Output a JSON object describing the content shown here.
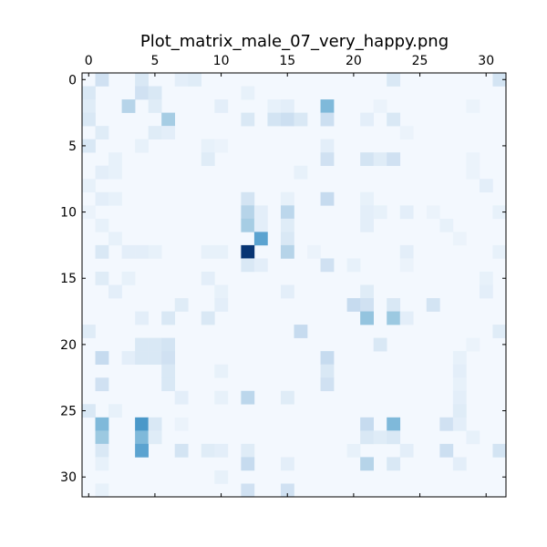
{
  "chart_data": {
    "type": "heatmap",
    "title": "Plot_matrix_male_07_very_happy.png",
    "rows": 32,
    "cols": 32,
    "x_ticks": [
      0,
      5,
      10,
      15,
      20,
      25,
      30
    ],
    "y_ticks": [
      0,
      5,
      10,
      15,
      20,
      25,
      30
    ],
    "x_axis_position": "top",
    "colormap": "Blues",
    "value_range": [
      0,
      1
    ],
    "color_scale": [
      "#f7fbff",
      "#deebf7",
      "#c6dbef",
      "#9ecae1",
      "#6baed6",
      "#4292c6",
      "#2171b5",
      "#08519c",
      "#08306b"
    ],
    "background_value": 0.02,
    "cells": [
      [
        0,
        1,
        0.2
      ],
      [
        0,
        4,
        0.15
      ],
      [
        0,
        7,
        0.1
      ],
      [
        0,
        8,
        0.12
      ],
      [
        0,
        23,
        0.15
      ],
      [
        0,
        31,
        0.18
      ],
      [
        1,
        0,
        0.15
      ],
      [
        1,
        4,
        0.2
      ],
      [
        1,
        5,
        0.15
      ],
      [
        1,
        12,
        0.08
      ],
      [
        2,
        0,
        0.12
      ],
      [
        2,
        3,
        0.3
      ],
      [
        2,
        5,
        0.12
      ],
      [
        2,
        10,
        0.1
      ],
      [
        2,
        14,
        0.08
      ],
      [
        2,
        15,
        0.1
      ],
      [
        2,
        18,
        0.45
      ],
      [
        2,
        22,
        0.06
      ],
      [
        2,
        29,
        0.06
      ],
      [
        3,
        0,
        0.15
      ],
      [
        3,
        6,
        0.35
      ],
      [
        3,
        12,
        0.15
      ],
      [
        3,
        14,
        0.18
      ],
      [
        3,
        15,
        0.22
      ],
      [
        3,
        16,
        0.15
      ],
      [
        3,
        18,
        0.22
      ],
      [
        3,
        21,
        0.1
      ],
      [
        3,
        23,
        0.15
      ],
      [
        4,
        1,
        0.12
      ],
      [
        4,
        5,
        0.12
      ],
      [
        4,
        6,
        0.1
      ],
      [
        4,
        24,
        0.06
      ],
      [
        5,
        0,
        0.15
      ],
      [
        5,
        4,
        0.08
      ],
      [
        5,
        9,
        0.08
      ],
      [
        5,
        10,
        0.06
      ],
      [
        5,
        18,
        0.1
      ],
      [
        6,
        2,
        0.08
      ],
      [
        6,
        9,
        0.12
      ],
      [
        6,
        18,
        0.2
      ],
      [
        6,
        21,
        0.18
      ],
      [
        6,
        22,
        0.12
      ],
      [
        6,
        23,
        0.2
      ],
      [
        6,
        29,
        0.06
      ],
      [
        7,
        1,
        0.1
      ],
      [
        7,
        2,
        0.08
      ],
      [
        7,
        16,
        0.08
      ],
      [
        7,
        29,
        0.06
      ],
      [
        8,
        0,
        0.08
      ],
      [
        8,
        30,
        0.1
      ],
      [
        9,
        1,
        0.1
      ],
      [
        9,
        2,
        0.08
      ],
      [
        9,
        12,
        0.18
      ],
      [
        9,
        15,
        0.08
      ],
      [
        9,
        18,
        0.25
      ],
      [
        9,
        21,
        0.08
      ],
      [
        10,
        0,
        0.06
      ],
      [
        10,
        12,
        0.3
      ],
      [
        10,
        13,
        0.1
      ],
      [
        10,
        15,
        0.28
      ],
      [
        10,
        21,
        0.1
      ],
      [
        10,
        22,
        0.08
      ],
      [
        10,
        24,
        0.1
      ],
      [
        10,
        26,
        0.06
      ],
      [
        10,
        31,
        0.08
      ],
      [
        11,
        1,
        0.08
      ],
      [
        11,
        12,
        0.35
      ],
      [
        11,
        13,
        0.1
      ],
      [
        11,
        15,
        0.12
      ],
      [
        11,
        21,
        0.1
      ],
      [
        11,
        27,
        0.08
      ],
      [
        12,
        2,
        0.08
      ],
      [
        12,
        13,
        0.55
      ],
      [
        12,
        15,
        0.15
      ],
      [
        12,
        28,
        0.06
      ],
      [
        13,
        1,
        0.15
      ],
      [
        13,
        3,
        0.1
      ],
      [
        13,
        4,
        0.1
      ],
      [
        13,
        5,
        0.08
      ],
      [
        13,
        9,
        0.08
      ],
      [
        13,
        10,
        0.08
      ],
      [
        13,
        12,
        0.98
      ],
      [
        13,
        15,
        0.3
      ],
      [
        13,
        17,
        0.06
      ],
      [
        13,
        24,
        0.1
      ],
      [
        13,
        31,
        0.08
      ],
      [
        14,
        12,
        0.15
      ],
      [
        14,
        13,
        0.1
      ],
      [
        14,
        18,
        0.2
      ],
      [
        14,
        20,
        0.08
      ],
      [
        14,
        24,
        0.06
      ],
      [
        15,
        1,
        0.12
      ],
      [
        15,
        3,
        0.08
      ],
      [
        15,
        9,
        0.1
      ],
      [
        15,
        30,
        0.08
      ],
      [
        16,
        2,
        0.1
      ],
      [
        16,
        10,
        0.08
      ],
      [
        16,
        15,
        0.1
      ],
      [
        16,
        21,
        0.12
      ],
      [
        16,
        30,
        0.1
      ],
      [
        17,
        7,
        0.12
      ],
      [
        17,
        10,
        0.1
      ],
      [
        17,
        20,
        0.25
      ],
      [
        17,
        21,
        0.2
      ],
      [
        17,
        23,
        0.15
      ],
      [
        17,
        26,
        0.18
      ],
      [
        18,
        4,
        0.1
      ],
      [
        18,
        6,
        0.15
      ],
      [
        18,
        9,
        0.15
      ],
      [
        18,
        21,
        0.4
      ],
      [
        18,
        23,
        0.38
      ],
      [
        18,
        24,
        0.1
      ],
      [
        19,
        0,
        0.12
      ],
      [
        19,
        16,
        0.25
      ],
      [
        19,
        31,
        0.12
      ],
      [
        20,
        4,
        0.15
      ],
      [
        20,
        5,
        0.15
      ],
      [
        20,
        6,
        0.18
      ],
      [
        20,
        22,
        0.15
      ],
      [
        20,
        29,
        0.06
      ],
      [
        21,
        1,
        0.25
      ],
      [
        21,
        3,
        0.1
      ],
      [
        21,
        4,
        0.15
      ],
      [
        21,
        5,
        0.15
      ],
      [
        21,
        6,
        0.2
      ],
      [
        21,
        18,
        0.25
      ],
      [
        21,
        28,
        0.08
      ],
      [
        22,
        6,
        0.15
      ],
      [
        22,
        10,
        0.08
      ],
      [
        22,
        18,
        0.15
      ],
      [
        22,
        28,
        0.1
      ],
      [
        23,
        1,
        0.2
      ],
      [
        23,
        6,
        0.15
      ],
      [
        23,
        18,
        0.2
      ],
      [
        23,
        28,
        0.08
      ],
      [
        24,
        7,
        0.1
      ],
      [
        24,
        10,
        0.08
      ],
      [
        24,
        12,
        0.28
      ],
      [
        24,
        15,
        0.12
      ],
      [
        24,
        28,
        0.1
      ],
      [
        25,
        0,
        0.15
      ],
      [
        25,
        2,
        0.08
      ],
      [
        25,
        28,
        0.12
      ],
      [
        26,
        1,
        0.45
      ],
      [
        26,
        4,
        0.6
      ],
      [
        26,
        5,
        0.15
      ],
      [
        26,
        7,
        0.06
      ],
      [
        26,
        21,
        0.25
      ],
      [
        26,
        23,
        0.45
      ],
      [
        26,
        27,
        0.2
      ],
      [
        26,
        28,
        0.1
      ],
      [
        27,
        1,
        0.38
      ],
      [
        27,
        4,
        0.45
      ],
      [
        27,
        5,
        0.12
      ],
      [
        27,
        21,
        0.15
      ],
      [
        27,
        22,
        0.12
      ],
      [
        27,
        23,
        0.15
      ],
      [
        27,
        29,
        0.08
      ],
      [
        28,
        1,
        0.15
      ],
      [
        28,
        4,
        0.55
      ],
      [
        28,
        7,
        0.18
      ],
      [
        28,
        9,
        0.12
      ],
      [
        28,
        10,
        0.1
      ],
      [
        28,
        12,
        0.12
      ],
      [
        28,
        20,
        0.08
      ],
      [
        28,
        24,
        0.1
      ],
      [
        28,
        27,
        0.22
      ],
      [
        28,
        31,
        0.18
      ],
      [
        29,
        1,
        0.08
      ],
      [
        29,
        12,
        0.25
      ],
      [
        29,
        15,
        0.1
      ],
      [
        29,
        21,
        0.3
      ],
      [
        29,
        23,
        0.15
      ],
      [
        29,
        28,
        0.1
      ],
      [
        30,
        10,
        0.08
      ],
      [
        31,
        1,
        0.08
      ],
      [
        31,
        12,
        0.2
      ],
      [
        31,
        15,
        0.2
      ]
    ]
  }
}
